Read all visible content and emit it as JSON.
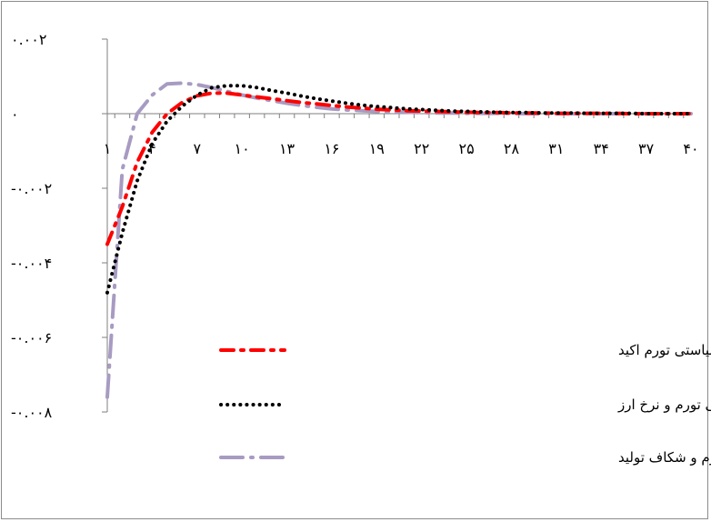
{
  "chart_data": {
    "type": "line",
    "title": "",
    "xlabel": "",
    "ylabel": "",
    "x": [
      1,
      2,
      3,
      4,
      5,
      6,
      7,
      8,
      9,
      10,
      11,
      12,
      13,
      14,
      15,
      16,
      17,
      18,
      19,
      20,
      21,
      22,
      23,
      24,
      25,
      26,
      27,
      28,
      29,
      30,
      31,
      32,
      33,
      34,
      35,
      36,
      37,
      38,
      39,
      40
    ],
    "x_tick_labels": [
      "۱",
      "۴",
      "۷",
      "۱۰",
      "۱۳",
      "۱۶",
      "۱۹",
      "۲۲",
      "۲۵",
      "۲۸",
      "۳۱",
      "۳۴",
      "۳۷",
      "۴۰"
    ],
    "x_tick_values": [
      1,
      4,
      7,
      10,
      13,
      16,
      19,
      22,
      25,
      28,
      31,
      34,
      37,
      40
    ],
    "y_tick_labels": [
      "۰.۰۰۲",
      "۰",
      "-۰.۰۰۲",
      "-۰.۰۰۴",
      "-۰.۰۰۶",
      "-۰.۰۰۸"
    ],
    "y_tick_values": [
      0.002,
      0,
      -0.002,
      -0.004,
      -0.006,
      -0.008
    ],
    "ylim": [
      -0.008,
      0.002
    ],
    "grid": false,
    "legend_position": "bottom-center",
    "series": [
      {
        "name": "حساب جاری-قاعده سیاستی تورم اکید",
        "color": "#ff0000",
        "style": "dash-dot",
        "values": [
          -0.0035,
          -0.0025,
          -0.0013,
          -0.0005,
          0.0,
          0.0003,
          0.00048,
          0.00055,
          0.00055,
          0.0005,
          0.00045,
          0.0004,
          0.00035,
          0.0003,
          0.00026,
          0.00022,
          0.00018,
          0.00015,
          0.00012,
          0.0001,
          8e-05,
          7e-05,
          6e-05,
          5e-05,
          4e-05,
          3e-05,
          3e-05,
          2e-05,
          2e-05,
          2e-05,
          1e-05,
          1e-05,
          1e-05,
          1e-05,
          1e-05,
          0.0,
          0.0,
          0.0,
          0.0,
          0.0
        ]
      },
      {
        "name": "حساب جاری-قاعده سیاستی تورم و نرخ ارز",
        "color": "#000000",
        "style": "dotted",
        "values": [
          -0.0048,
          -0.0032,
          -0.0018,
          -0.0008,
          -0.0002,
          0.0002,
          0.0005,
          0.0007,
          0.00075,
          0.00075,
          0.0007,
          0.00062,
          0.00055,
          0.00047,
          0.0004,
          0.00034,
          0.00028,
          0.00023,
          0.00019,
          0.00016,
          0.00013,
          0.00011,
          9e-05,
          7e-05,
          6e-05,
          5e-05,
          4e-05,
          3e-05,
          3e-05,
          2e-05,
          2e-05,
          2e-05,
          1e-05,
          1e-05,
          1e-05,
          1e-05,
          0.0,
          0.0,
          0.0,
          0.0
        ]
      },
      {
        "name": "حساب جاری-قاعده سیاستی تورم و شکاف تولید",
        "color": "#a89bc2",
        "style": "long-dash",
        "values": [
          -0.0076,
          -0.0015,
          0.0,
          0.0005,
          0.0008,
          0.00082,
          0.00078,
          0.0007,
          0.0006,
          0.0005,
          0.00042,
          0.00035,
          0.00028,
          0.00022,
          0.00017,
          0.00013,
          0.0001,
          8e-05,
          6e-05,
          5e-05,
          4e-05,
          3e-05,
          2e-05,
          2e-05,
          1e-05,
          1e-05,
          1e-05,
          1e-05,
          0.0,
          0.0,
          0.0,
          0.0,
          0.0,
          0.0,
          0.0,
          0.0,
          0.0,
          0.0,
          0.0,
          0.0
        ]
      }
    ]
  }
}
